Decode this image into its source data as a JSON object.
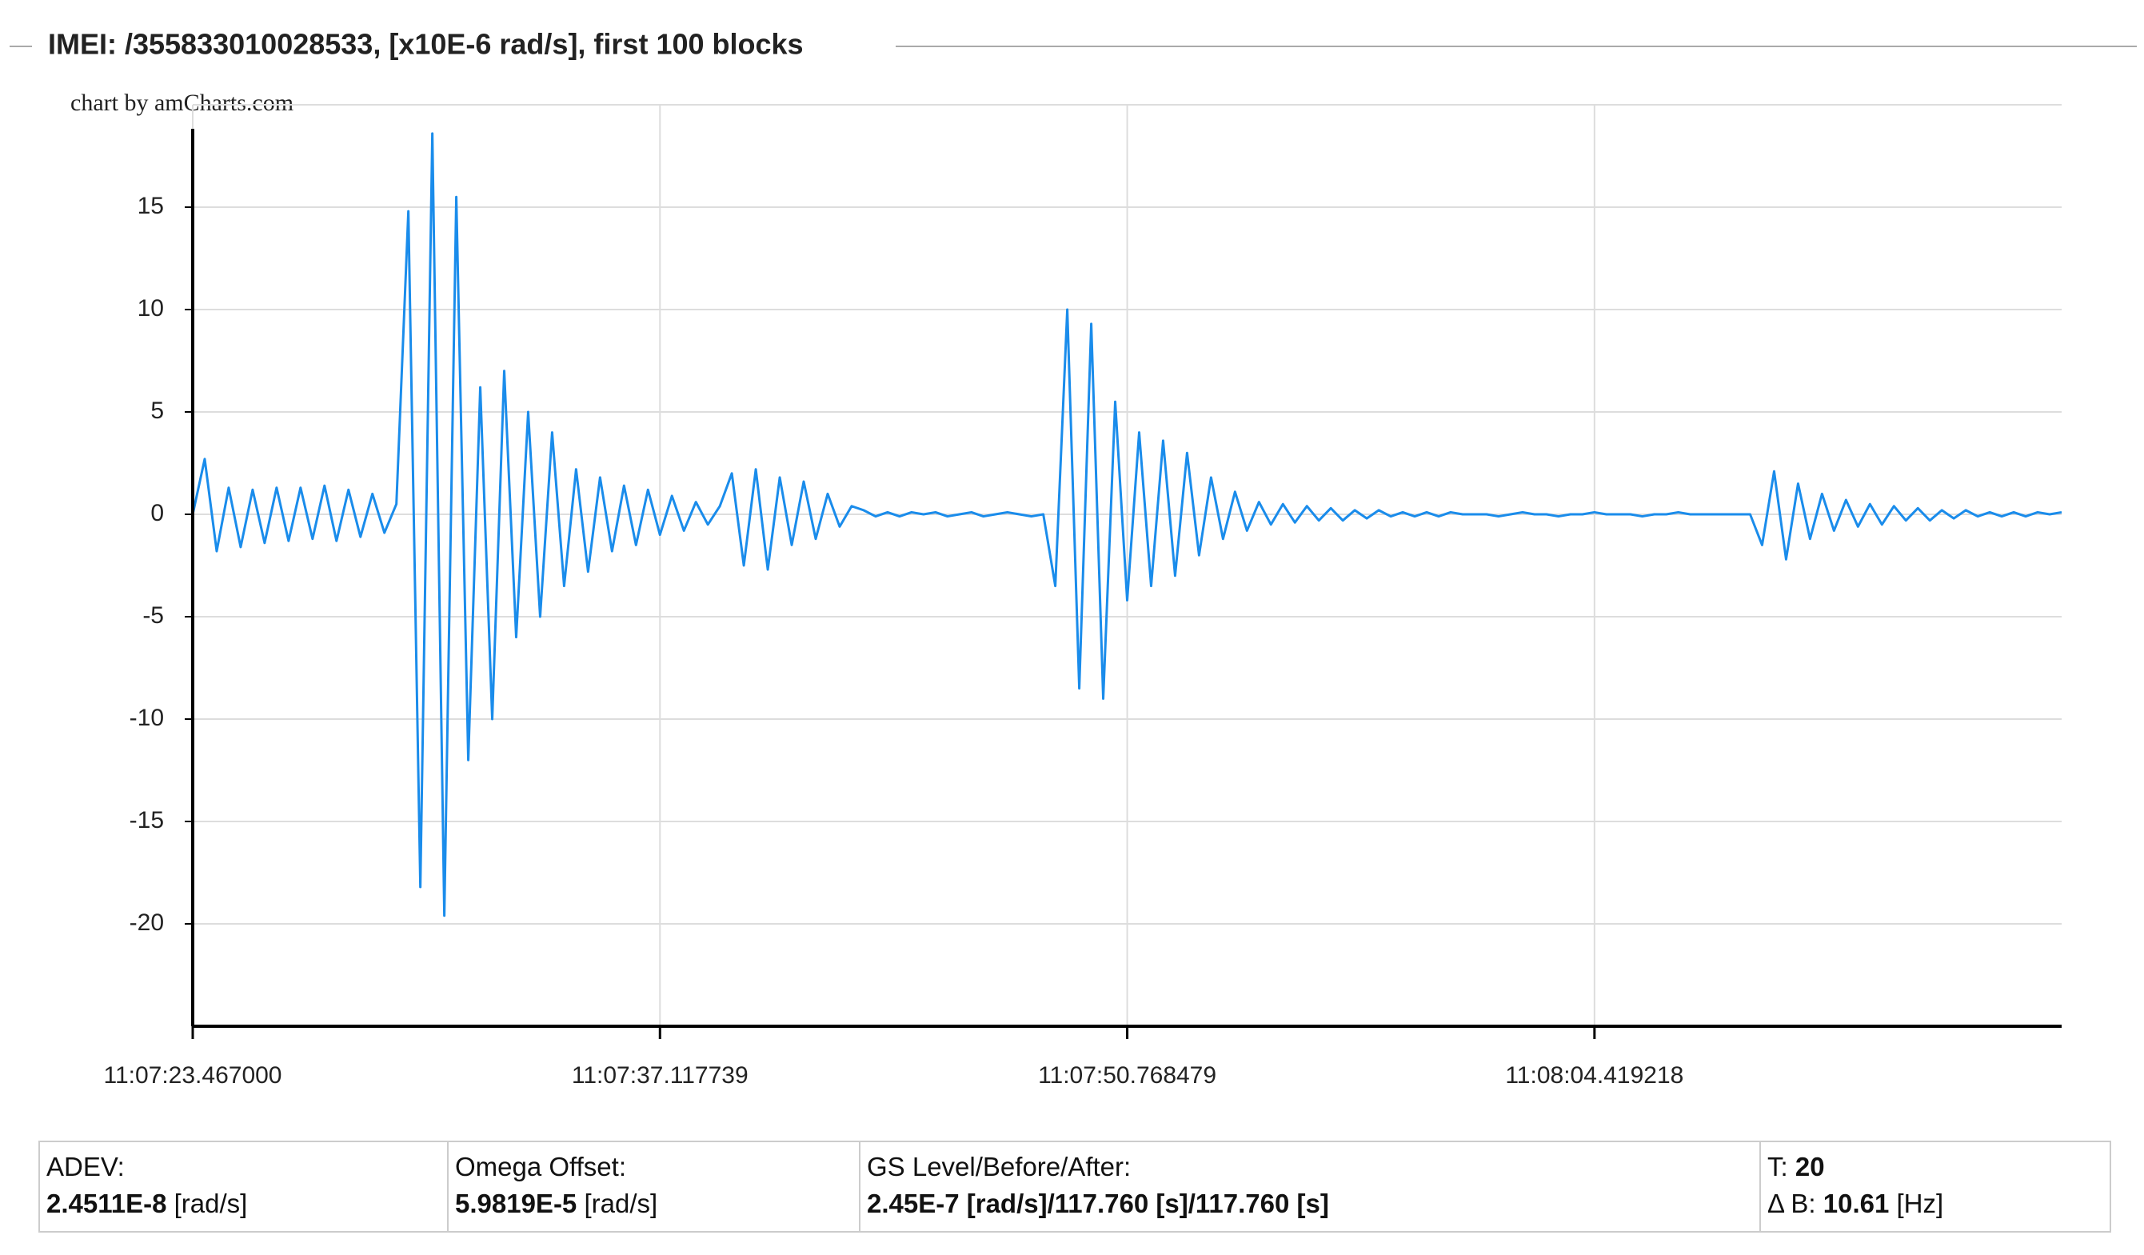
{
  "chart_data": {
    "type": "line",
    "title": "IMEI: /355833010028533, [x10E-6 rad/s], first 100 blocks",
    "credit": "chart by amCharts.com",
    "color": "#1a8ceb",
    "grid": true,
    "xlim": [
      0,
      54.6
    ],
    "xticks": [
      {
        "value": 0,
        "label": "11:07:23.467000"
      },
      {
        "value": 13.650739,
        "label": "11:07:37.117739"
      },
      {
        "value": 27.301479,
        "label": "11:07:50.768479"
      },
      {
        "value": 40.952218,
        "label": "11:08:04.419218"
      }
    ],
    "ylim": [
      -25,
      20
    ],
    "yticks": [
      -20,
      -15,
      -10,
      -5,
      0,
      5,
      10,
      15
    ],
    "x": [
      0,
      0.35,
      0.7,
      1.05,
      1.4,
      1.75,
      2.1,
      2.45,
      2.8,
      3.15,
      3.5,
      3.85,
      4.2,
      4.55,
      4.9,
      5.25,
      5.6,
      5.95,
      6.3,
      6.65,
      7,
      7.35,
      7.7,
      8.05,
      8.4,
      8.75,
      9.1,
      9.45,
      9.8,
      10.15,
      10.5,
      10.85,
      11.2,
      11.55,
      11.9,
      12.25,
      12.6,
      12.95,
      13.3,
      13.65,
      14,
      14.35,
      14.7,
      15.05,
      15.4,
      15.75,
      16.1,
      16.45,
      16.8,
      17.15,
      17.5,
      17.85,
      18.2,
      18.55,
      18.9,
      19.25,
      19.6,
      19.95,
      20.3,
      20.65,
      21,
      21.35,
      21.7,
      22.05,
      22.4,
      22.75,
      23.1,
      23.45,
      23.8,
      24.15,
      24.5,
      24.85,
      25.2,
      25.55,
      25.9,
      26.25,
      26.6,
      26.95,
      27.3,
      27.65,
      28,
      28.35,
      28.7,
      29.05,
      29.4,
      29.75,
      30.1,
      30.45,
      30.8,
      31.15,
      31.5,
      31.85,
      32.2,
      32.55,
      32.9,
      33.25,
      33.6,
      33.95,
      34.3,
      34.65,
      35,
      35.35,
      35.7,
      36.05,
      36.4,
      36.75,
      37.1,
      37.45,
      37.8,
      38.15,
      38.5,
      38.85,
      39.2,
      39.55,
      39.9,
      40.25,
      40.6,
      40.95,
      41.3,
      41.65,
      42,
      42.35,
      42.7,
      43.05,
      43.4,
      43.75,
      44.1,
      44.45,
      44.8,
      45.15,
      45.5,
      45.85,
      46.2,
      46.55,
      46.9,
      47.25,
      47.6,
      47.95,
      48.3,
      48.65,
      49,
      49.35,
      49.7,
      50.05,
      50.4,
      50.75,
      51.1,
      51.45,
      51.8,
      52.15,
      52.5,
      52.85,
      53.2,
      53.55,
      53.9,
      54.25,
      54.6
    ],
    "values": [
      0,
      2.7,
      -1.8,
      1.3,
      -1.6,
      1.2,
      -1.4,
      1.3,
      -1.3,
      1.3,
      -1.2,
      1.4,
      -1.3,
      1.2,
      -1.1,
      1.0,
      -0.9,
      0.5,
      14.8,
      -18.2,
      18.6,
      -19.6,
      15.5,
      -12,
      6.2,
      -10,
      7,
      -6,
      5,
      -5,
      4,
      -3.5,
      2.2,
      -2.8,
      1.8,
      -1.8,
      1.4,
      -1.5,
      1.2,
      -1.0,
      0.9,
      -0.8,
      0.6,
      -0.5,
      0.4,
      2,
      -2.5,
      2.2,
      -2.7,
      1.8,
      -1.5,
      1.6,
      -1.2,
      1.0,
      -0.6,
      0.4,
      0.2,
      -0.1,
      0.1,
      -0.1,
      0.1,
      0,
      0.1,
      -0.1,
      0,
      0.1,
      -0.1,
      0,
      0.1,
      0,
      -0.1,
      0,
      -3.5,
      10,
      -8.5,
      9.3,
      -9,
      5.5,
      -4.2,
      4,
      -3.5,
      3.6,
      -3,
      3,
      -2,
      1.8,
      -1.2,
      1.1,
      -0.8,
      0.6,
      -0.5,
      0.5,
      -0.4,
      0.4,
      -0.3,
      0.3,
      -0.3,
      0.2,
      -0.2,
      0.2,
      -0.1,
      0.1,
      -0.1,
      0.1,
      -0.1,
      0.1,
      0,
      0,
      0,
      -0.1,
      0,
      0.1,
      0,
      0,
      -0.1,
      0,
      0,
      0.1,
      0,
      0,
      0,
      -0.1,
      0,
      0,
      0.1,
      0,
      0,
      0,
      0,
      0,
      0,
      -1.5,
      2.1,
      -2.2,
      1.5,
      -1.2,
      1.0,
      -0.8,
      0.7,
      -0.6,
      0.5,
      -0.5,
      0.4,
      -0.3,
      0.3,
      -0.3,
      0.2,
      -0.2,
      0.2,
      -0.1,
      0.1,
      -0.1,
      0.1,
      -0.1,
      0.1,
      0,
      0.1
    ]
  },
  "stats": [
    {
      "label": "ADEV:",
      "value": "2.4511E-8",
      "unit": "[rad/s]"
    },
    {
      "label": "Omega Offset:",
      "value": "5.9819E-5",
      "unit": "[rad/s]"
    },
    {
      "label": "GS Level/Before/After:",
      "value": "2.45E-7 [rad/s]/117.760 [s]/117.760 [s]"
    },
    {
      "label": "T:",
      "value": "20",
      "label2": "Δ B:",
      "value2": "10.61",
      "unit2": "[Hz]"
    }
  ]
}
